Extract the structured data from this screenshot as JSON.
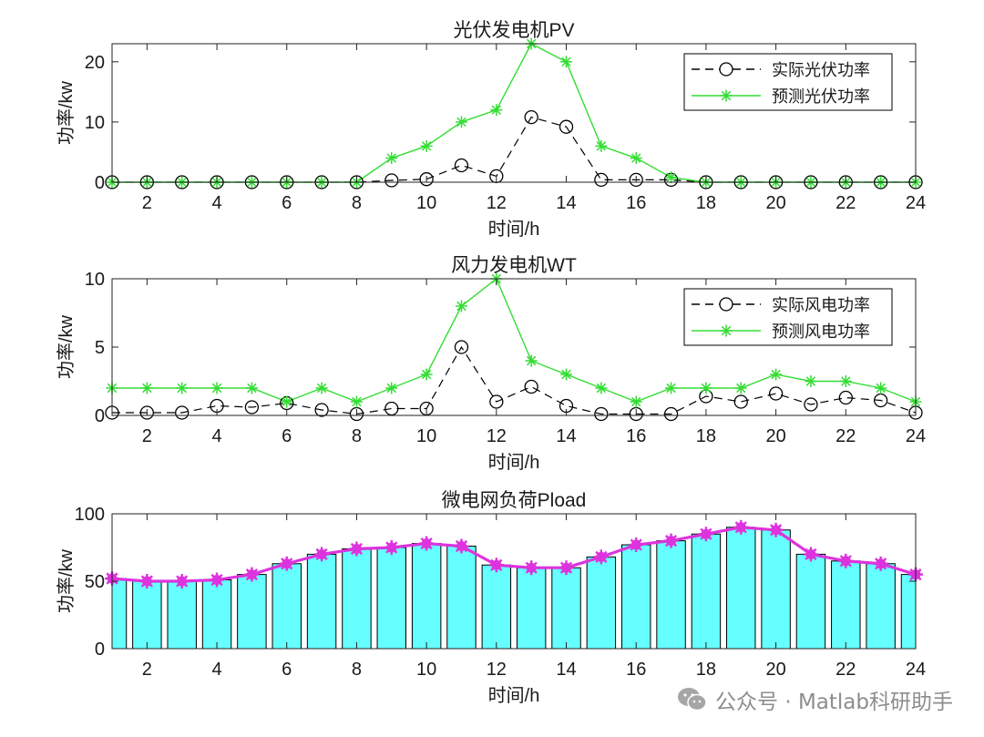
{
  "chart_data": [
    {
      "type": "line",
      "title": "光伏发电机PV",
      "xlabel": "时间/h",
      "ylabel": "功率/kw",
      "xlim": [
        1,
        24
      ],
      "ylim": [
        0,
        23
      ],
      "xticks": [
        "2",
        "4",
        "6",
        "8",
        "10",
        "12",
        "14",
        "16",
        "18",
        "20",
        "22",
        "24"
      ],
      "yticks": [
        "0",
        "10",
        "20"
      ],
      "legend_position": "top-right",
      "x": [
        1,
        2,
        3,
        4,
        5,
        6,
        7,
        8,
        9,
        10,
        11,
        12,
        13,
        14,
        15,
        16,
        17,
        18,
        19,
        20,
        21,
        22,
        23,
        24
      ],
      "series": [
        {
          "name": "实际光伏功率",
          "style": "dashed-circle",
          "color": "#000000",
          "values": [
            0,
            0,
            0,
            0,
            0,
            0,
            0,
            0,
            0.3,
            0.5,
            2.8,
            1.0,
            10.8,
            9.2,
            0.4,
            0.4,
            0.4,
            0,
            0,
            0,
            0,
            0,
            0,
            0
          ]
        },
        {
          "name": "预测光伏功率",
          "style": "solid-star",
          "color": "#33dd33",
          "values": [
            0,
            0,
            0,
            0,
            0,
            0,
            0,
            0,
            4.0,
            6.0,
            10.0,
            12.0,
            23.0,
            20.0,
            6.0,
            4.0,
            0.8,
            0,
            0,
            0,
            0,
            0,
            0,
            0
          ]
        }
      ]
    },
    {
      "type": "line",
      "title": "风力发电机WT",
      "xlabel": "时间/h",
      "ylabel": "功率/kw",
      "xlim": [
        1,
        24
      ],
      "ylim": [
        0,
        10
      ],
      "xticks": [
        "2",
        "4",
        "6",
        "8",
        "10",
        "12",
        "14",
        "16",
        "18",
        "20",
        "22",
        "24"
      ],
      "yticks": [
        "0",
        "5",
        "10"
      ],
      "legend_position": "top-right",
      "x": [
        1,
        2,
        3,
        4,
        5,
        6,
        7,
        8,
        9,
        10,
        11,
        12,
        13,
        14,
        15,
        16,
        17,
        18,
        19,
        20,
        21,
        22,
        23,
        24
      ],
      "series": [
        {
          "name": "实际风电功率",
          "style": "dashed-circle",
          "color": "#000000",
          "values": [
            0.2,
            0.2,
            0.2,
            0.7,
            0.6,
            0.9,
            0.4,
            0.1,
            0.5,
            0.5,
            5.0,
            1.0,
            2.1,
            0.7,
            0.1,
            0.1,
            0.1,
            1.4,
            1.0,
            1.6,
            0.8,
            1.3,
            1.1,
            0.2
          ]
        },
        {
          "name": "预测风电功率",
          "style": "solid-star",
          "color": "#33dd33",
          "values": [
            2,
            2,
            2,
            2,
            2,
            1,
            2,
            1,
            2,
            3,
            8,
            10,
            4,
            3,
            2,
            1,
            2,
            2,
            2,
            3,
            2.5,
            2.5,
            2,
            1
          ]
        }
      ]
    },
    {
      "type": "bar",
      "title": "微电网负荷Pload",
      "xlabel": "时间/h",
      "ylabel": "功率/kw",
      "xlim": [
        1,
        24
      ],
      "ylim": [
        0,
        100
      ],
      "xticks": [
        "2",
        "4",
        "6",
        "8",
        "10",
        "12",
        "14",
        "16",
        "18",
        "20",
        "22",
        "24"
      ],
      "yticks": [
        "0",
        "50",
        "100"
      ],
      "bar_color": "#66ffff",
      "line_color": "#dd33dd",
      "x": [
        1,
        2,
        3,
        4,
        5,
        6,
        7,
        8,
        9,
        10,
        11,
        12,
        13,
        14,
        15,
        16,
        17,
        18,
        19,
        20,
        21,
        22,
        23,
        24
      ],
      "values": [
        52,
        50,
        50,
        51,
        55,
        63,
        70,
        74,
        75,
        78,
        76,
        62,
        60,
        60,
        68,
        77,
        80,
        85,
        90,
        88,
        70,
        65,
        63,
        55
      ]
    }
  ],
  "watermark": {
    "icon": "wechat-icon",
    "text": "公众号 · Matlab科研助手"
  }
}
